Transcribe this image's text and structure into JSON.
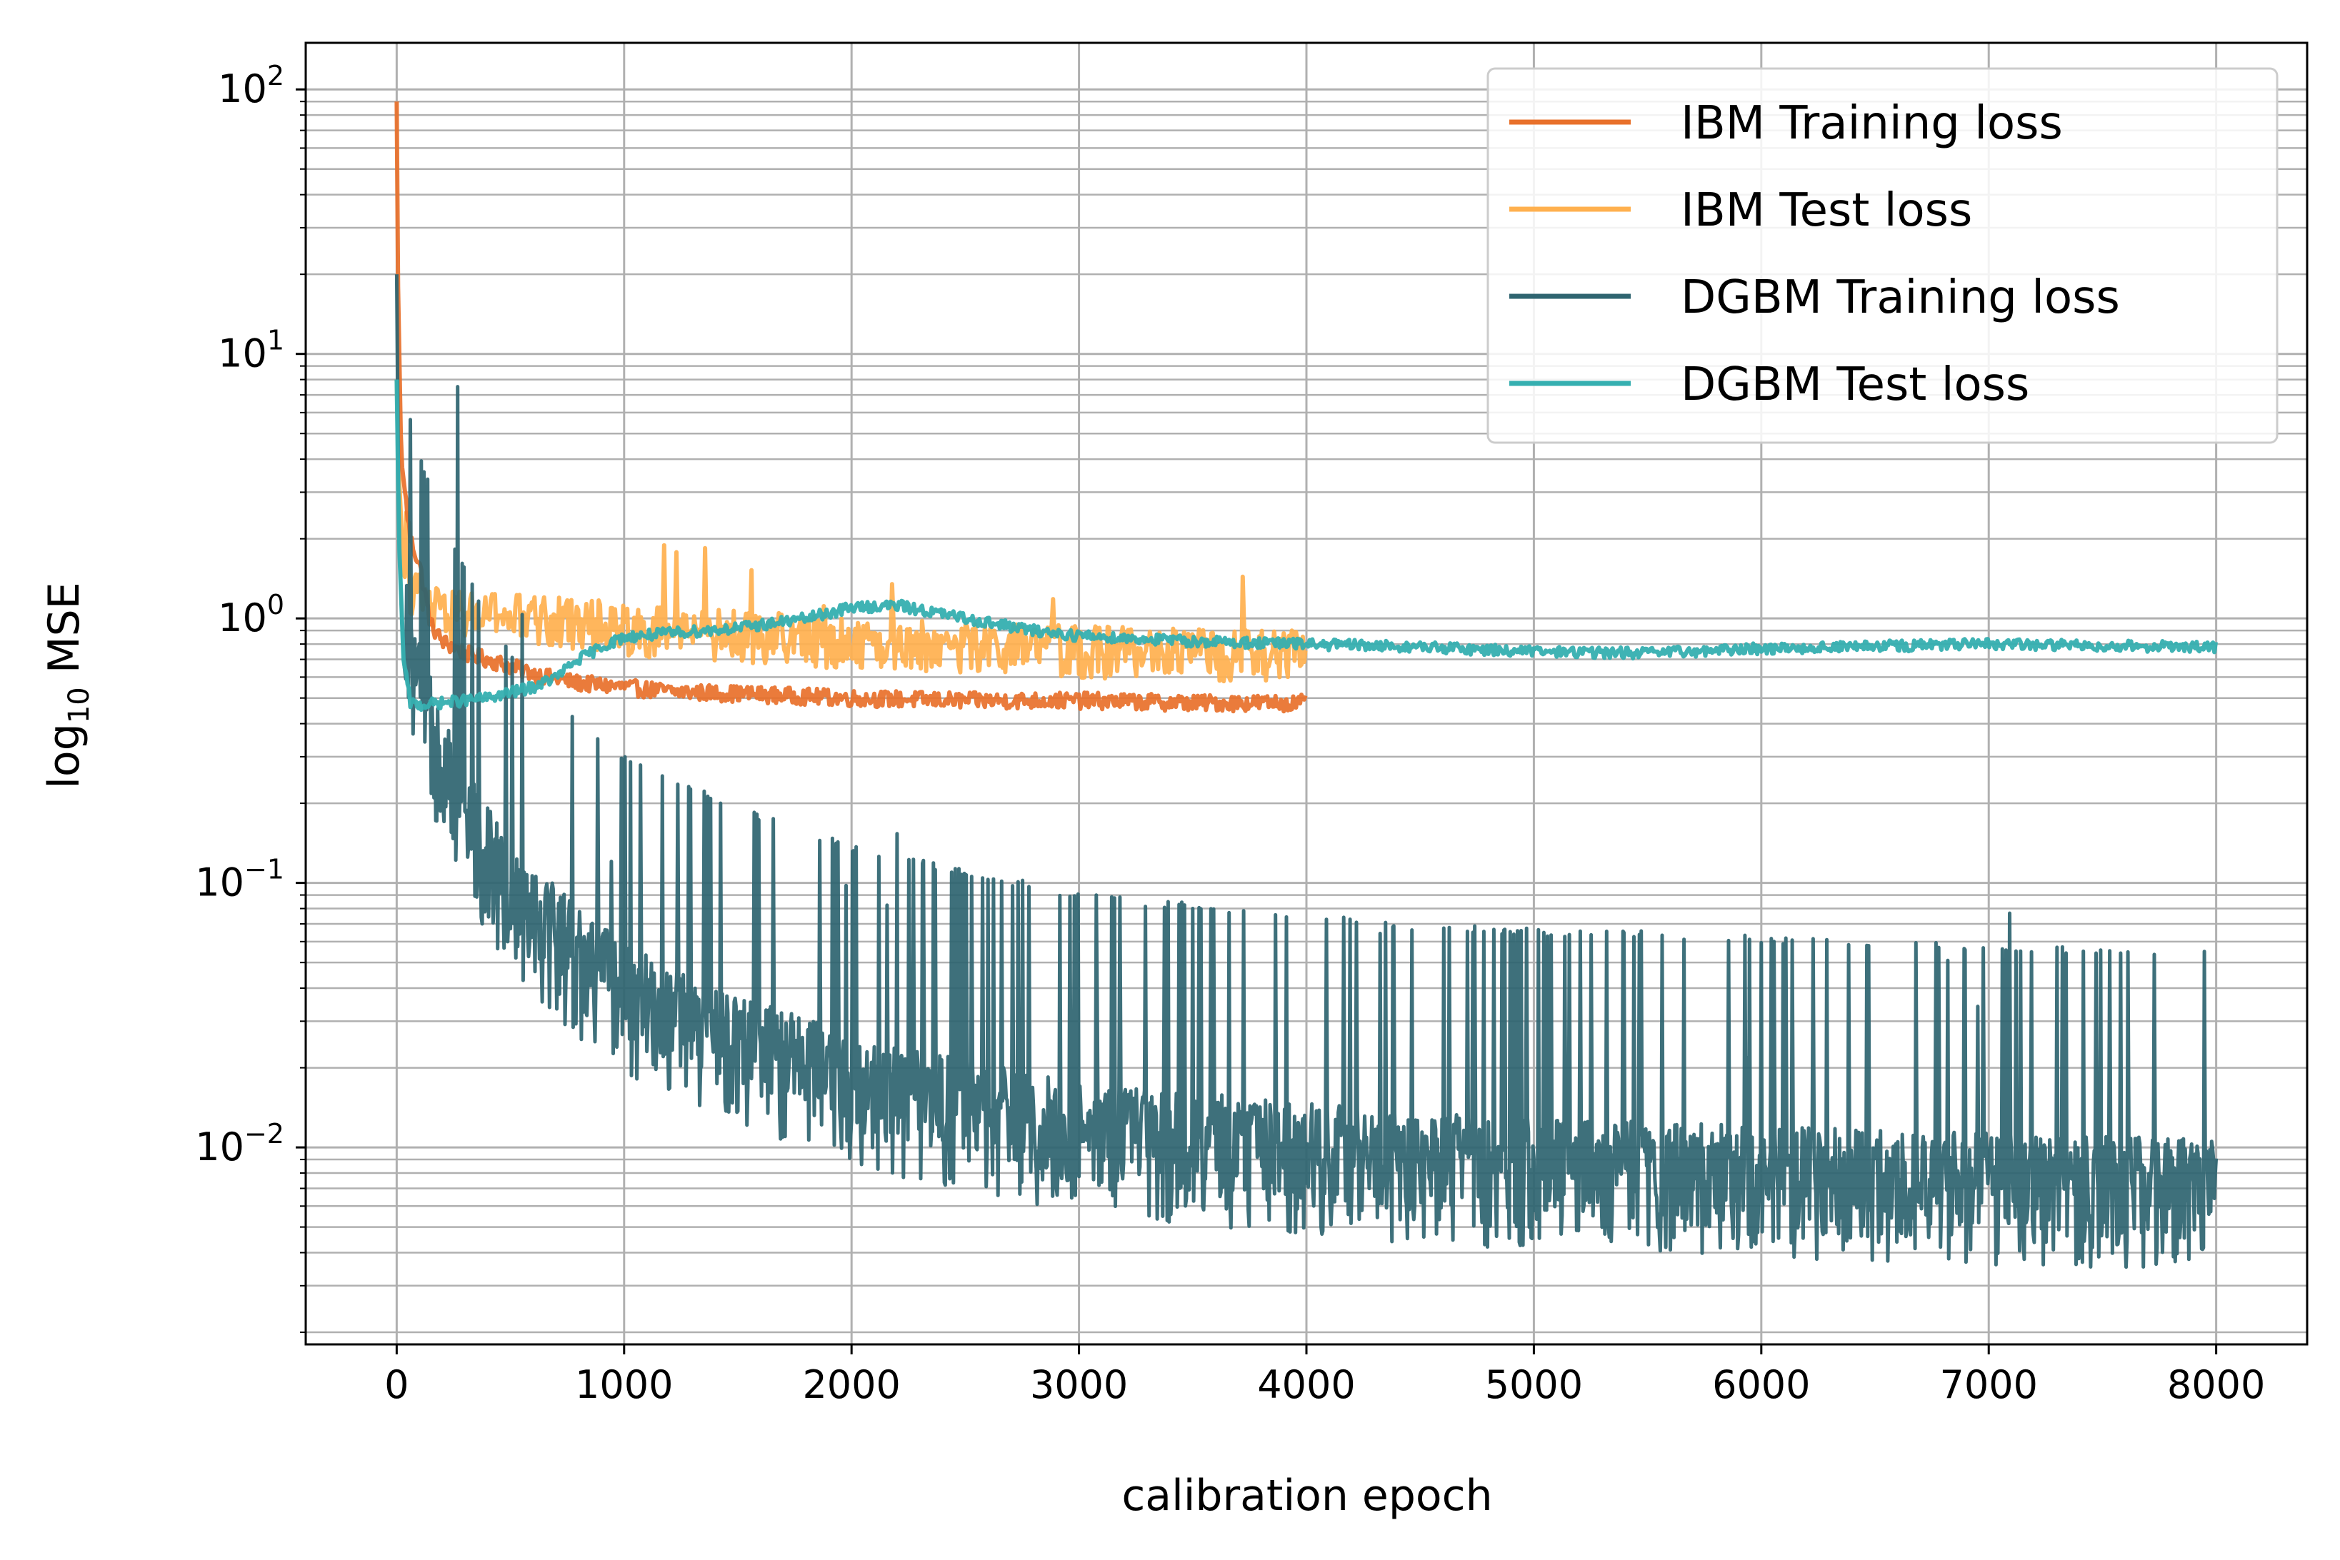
{
  "chart_data": {
    "type": "line",
    "title": "",
    "xlabel": "calibration epoch",
    "ylabel_base": "log",
    "ylabel_sub": "10",
    "ylabel_rest": " MSE",
    "yscale": "log",
    "xlim": [
      -400,
      8400
    ],
    "ylim": [
      0.0018,
      150
    ],
    "grid": "major and minor",
    "legend_position": "top-right",
    "x_ticks": [
      0,
      1000,
      2000,
      3000,
      4000,
      5000,
      6000,
      7000,
      8000
    ],
    "x_tick_labels": [
      "0",
      "1000",
      "2000",
      "3000",
      "4000",
      "5000",
      "6000",
      "7000",
      "8000"
    ],
    "y_ticks": [
      {
        "value": 100,
        "base": "10",
        "exp": "2"
      },
      {
        "value": 10,
        "base": "10",
        "exp": "1"
      },
      {
        "value": 1,
        "base": "10",
        "exp": "0"
      },
      {
        "value": 0.1,
        "base": "10",
        "exp": "−1"
      },
      {
        "value": 0.01,
        "base": "10",
        "exp": "−2"
      }
    ],
    "series": [
      {
        "name": "IBM Training loss",
        "color": "#E8702A",
        "x": [
          0,
          5,
          20,
          60,
          100,
          150,
          200,
          300,
          400,
          500,
          600,
          700,
          800,
          1000,
          1200,
          1500,
          2000,
          2500,
          3000,
          3500,
          4000
        ],
        "y": [
          90,
          20,
          4.0,
          2.0,
          1.6,
          0.95,
          0.82,
          0.74,
          0.7,
          0.66,
          0.62,
          0.59,
          0.57,
          0.55,
          0.53,
          0.52,
          0.5,
          0.49,
          0.49,
          0.48,
          0.48
        ],
        "noise_band": [
          0.04,
          0.12
        ]
      },
      {
        "name": "IBM Test loss",
        "color": "#FFB04E",
        "x": [
          0,
          10,
          30,
          60,
          100,
          150,
          200,
          300,
          400,
          500,
          700,
          900,
          1000,
          1200,
          1500,
          2000,
          2500,
          3000,
          3500,
          4000
        ],
        "y": [
          8,
          3.5,
          1.5,
          1.2,
          1.1,
          1.0,
          0.95,
          0.95,
          0.95,
          0.93,
          0.9,
          0.88,
          0.85,
          0.82,
          0.8,
          0.75,
          0.72,
          0.7,
          0.68,
          0.67
        ],
        "noise_band": [
          0.08,
          0.35
        ]
      },
      {
        "name": "DGBM Training loss",
        "color": "#2E6470",
        "x": [
          0,
          10,
          30,
          60,
          100,
          150,
          200,
          300,
          400,
          500,
          600,
          800,
          1000,
          1200,
          1500,
          2000,
          2500,
          3000,
          3500,
          4000,
          4500,
          5000,
          6000,
          7000,
          8000
        ],
        "y": [
          20,
          2.0,
          0.7,
          0.42,
          0.3,
          0.22,
          0.18,
          0.11,
          0.075,
          0.055,
          0.045,
          0.03,
          0.022,
          0.018,
          0.014,
          0.01,
          0.008,
          0.0065,
          0.006,
          0.0055,
          0.005,
          0.0048,
          0.0045,
          0.0042,
          0.004
        ],
        "noise_band": [
          0.3,
          2.2
        ]
      },
      {
        "name": "DGBM Test loss",
        "color": "#35AFB0",
        "x": [
          0,
          10,
          30,
          60,
          100,
          200,
          400,
          600,
          700,
          800,
          900,
          1000,
          1200,
          1500,
          1800,
          2000,
          2200,
          2500,
          2800,
          3000,
          3500,
          4000,
          4500,
          5000,
          5500,
          6000,
          7000,
          8000
        ],
        "y": [
          8,
          2.0,
          0.7,
          0.48,
          0.47,
          0.48,
          0.5,
          0.55,
          0.6,
          0.7,
          0.78,
          0.85,
          0.88,
          0.92,
          1.0,
          1.1,
          1.12,
          1.0,
          0.9,
          0.86,
          0.82,
          0.8,
          0.78,
          0.75,
          0.74,
          0.77,
          0.8,
          0.78
        ],
        "noise_band": [
          0.03,
          0.08
        ]
      }
    ]
  }
}
